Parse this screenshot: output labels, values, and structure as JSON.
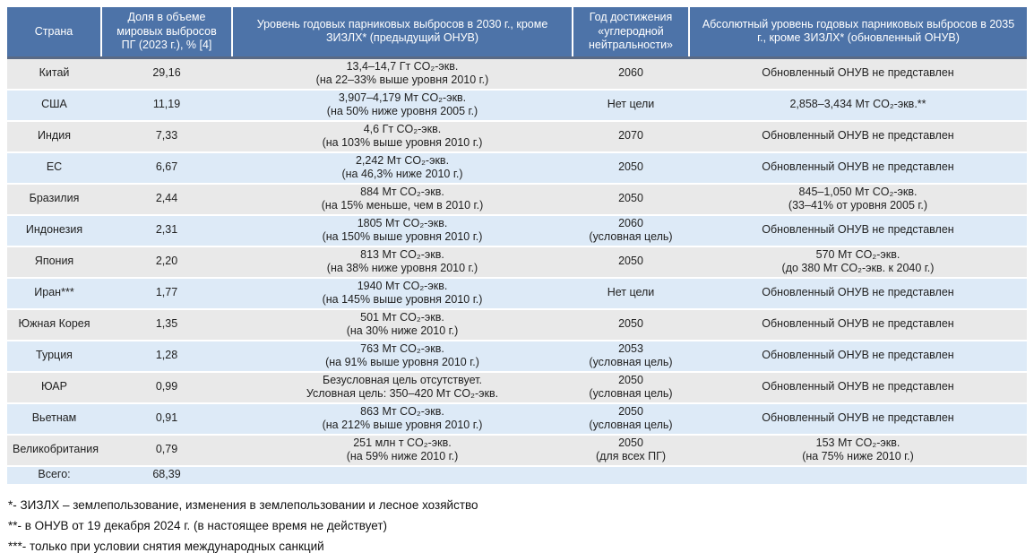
{
  "table": {
    "headers": [
      "Страна",
      "Доля в объеме мировых выбросов ПГ (2023 г.), % [4]",
      "Уровень годовых парниковых выбросов в 2030 г., кроме ЗИЗЛХ* (предыдущий ОНУВ)",
      "Год достижения «углеродной нейтральности»",
      "Абсолютный уровень годовых парниковых выбросов в 2035 г., кроме ЗИЗЛХ* (обновленный ОНУВ)"
    ],
    "rows": [
      {
        "country": "Китай",
        "share": "29,16",
        "level2030": [
          "13,4–14,7 Гт CO₂-экв.",
          "(на 22–33% выше уровня 2010 г.)"
        ],
        "neutrality_year": [
          "2060"
        ],
        "level2035": [
          "Обновленный ОНУВ не представлен"
        ]
      },
      {
        "country": "США",
        "share": "11,19",
        "level2030": [
          "3,907–4,179 Мт CO₂-экв.",
          "(на 50% ниже уровня 2005 г.)"
        ],
        "neutrality_year": [
          "Нет цели"
        ],
        "level2035": [
          "2,858–3,434 Мт CO₂-экв.**"
        ]
      },
      {
        "country": "Индия",
        "share": "7,33",
        "level2030": [
          "4,6 Гт CO₂-экв.",
          "(на 103% выше уровня 2010 г.)"
        ],
        "neutrality_year": [
          "2070"
        ],
        "level2035": [
          "Обновленный ОНУВ не представлен"
        ]
      },
      {
        "country": "ЕС",
        "share": "6,67",
        "level2030": [
          "2,242 Мт CO₂-экв.",
          "(на 46,3% ниже 2010 г.)"
        ],
        "neutrality_year": [
          "2050"
        ],
        "level2035": [
          "Обновленный ОНУВ не представлен"
        ]
      },
      {
        "country": "Бразилия",
        "share": "2,44",
        "level2030": [
          "884 Мт CO₂-экв.",
          "(на 15% меньше, чем в 2010 г.)"
        ],
        "neutrality_year": [
          "2050"
        ],
        "level2035": [
          "845–1,050 Мт CO₂-экв.",
          "(33–41% от уровня 2005 г.)"
        ]
      },
      {
        "country": "Индонезия",
        "share": "2,31",
        "level2030": [
          "1805 Мт CO₂-экв.",
          "(на 150% выше уровня 2010 г.)"
        ],
        "neutrality_year": [
          "2060",
          "(условная цель)"
        ],
        "level2035": [
          "Обновленный ОНУВ не представлен"
        ]
      },
      {
        "country": "Япония",
        "share": "2,20",
        "level2030": [
          "813 Мт CO₂-экв.",
          "(на 38% ниже уровня 2010 г.)"
        ],
        "neutrality_year": [
          "2050"
        ],
        "level2035": [
          "570 Мт CO₂-экв.",
          "(до 380 Мт CO₂-экв. к 2040 г.)"
        ]
      },
      {
        "country": "Иран***",
        "share": "1,77",
        "level2030": [
          "1940 Мт CO₂-экв.",
          "(на 145% выше уровня 2010 г.)"
        ],
        "neutrality_year": [
          "Нет цели"
        ],
        "level2035": [
          "Обновленный ОНУВ не представлен"
        ]
      },
      {
        "country": "Южная Корея",
        "share": "1,35",
        "level2030": [
          "501 Мт CO₂-экв.",
          "(на 30% ниже 2010 г.)"
        ],
        "neutrality_year": [
          "2050"
        ],
        "level2035": [
          "Обновленный ОНУВ не представлен"
        ]
      },
      {
        "country": "Турция",
        "share": "1,28",
        "level2030": [
          "763 Мт CO₂-экв.",
          "(на 91% выше уровня 2010 г.)"
        ],
        "neutrality_year": [
          "2053",
          "(условная цель)"
        ],
        "level2035": [
          "Обновленный ОНУВ не представлен"
        ]
      },
      {
        "country": "ЮАР",
        "share": "0,99",
        "level2030": [
          "Безусловная цель отсутствует.",
          "Условная цель: 350–420 Мт CO₂-экв."
        ],
        "neutrality_year": [
          "2050",
          "(условная цель)"
        ],
        "level2035": [
          "Обновленный ОНУВ не представлен"
        ]
      },
      {
        "country": "Вьетнам",
        "share": "0,91",
        "level2030": [
          "863 Мт CO₂-экв.",
          "(на 212% выше уровня 2010 г.)"
        ],
        "neutrality_year": [
          "2050",
          "(условная цель)"
        ],
        "level2035": [
          "Обновленный ОНУВ не представлен"
        ]
      },
      {
        "country": "Великобритания",
        "share": "0,79",
        "level2030": [
          "251 млн т CO₂-экв.",
          "(на 59% ниже 2010 г.)"
        ],
        "neutrality_year": [
          "2050",
          "(для всех ПГ)"
        ],
        "level2035": [
          "153 Мт CO₂-экв.",
          "(на 75% ниже 2010 г.)"
        ]
      }
    ],
    "total": {
      "label": "Всего:",
      "share": "68,39"
    }
  },
  "footnotes": [
    "*- ЗИЗЛХ – землепользование, изменения в землепользовании и лесное хозяйство",
    "**- в ОНУВ от 19 декабря 2024 г. (в настоящее время не действует)",
    "***- только при условии снятия международных санкций"
  ],
  "colors": {
    "header_bg": "#4d73a8",
    "row_gray": "#e9e9e9",
    "row_blue": "#ddeaf7",
    "header_border": "#5a6a85"
  }
}
